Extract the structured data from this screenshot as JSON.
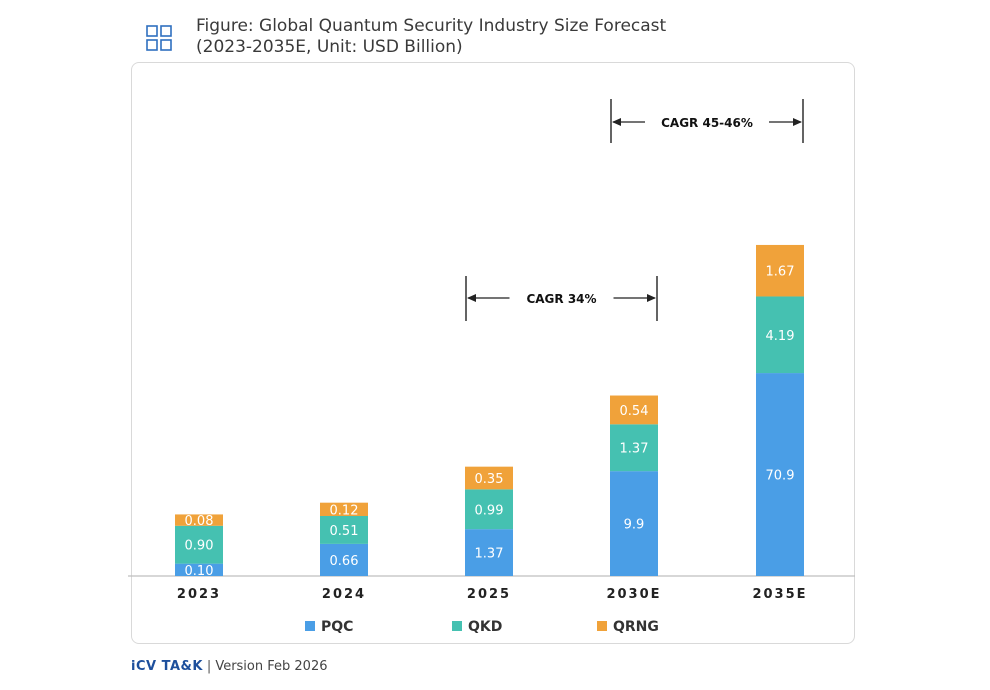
{
  "header": {
    "title_line1": "Figure: Global Quantum Security Industry Size Forecast",
    "title_line2": "(2023-2035E, Unit: USD Billion)",
    "icon": "grid-icon"
  },
  "footer": {
    "brand": "iCV TA&K",
    "separator": "|",
    "version": "Version Feb 2026"
  },
  "colors": {
    "PQC": "#4a9ee6",
    "QKD": "#45c1b1",
    "QRNG": "#f0a23a"
  },
  "chart_data": {
    "type": "bar",
    "stacked": true,
    "title": "Global Quantum Security Industry Size Forecast",
    "categories": [
      "2023",
      "2024",
      "2025",
      "2030E",
      "2035E"
    ],
    "series": [
      {
        "name": "PQC",
        "values": [
          0.1,
          0.66,
          1.37,
          9.9,
          70.9
        ],
        "labels": [
          "0.10",
          "0.66",
          "1.37",
          "9.9",
          "70.9"
        ]
      },
      {
        "name": "QKD",
        "values": [
          0.9,
          0.51,
          0.99,
          1.37,
          4.19
        ],
        "labels": [
          "0.90",
          "0.51",
          "0.99",
          "1.37",
          "4.19"
        ]
      },
      {
        "name": "QRNG",
        "values": [
          0.08,
          0.12,
          0.35,
          0.54,
          1.67
        ],
        "labels": [
          "0.08",
          "0.12",
          "0.35",
          "0.54",
          "1.67"
        ]
      }
    ],
    "annotations": [
      {
        "text": "CAGR 34%",
        "from": "2025",
        "to": "2030E"
      },
      {
        "text": "CAGR 45-46%",
        "from": "2030E",
        "to": "2035E"
      }
    ],
    "legend": [
      "PQC",
      "QKD",
      "QRNG"
    ],
    "legend_position": "bottom",
    "grid": false
  }
}
